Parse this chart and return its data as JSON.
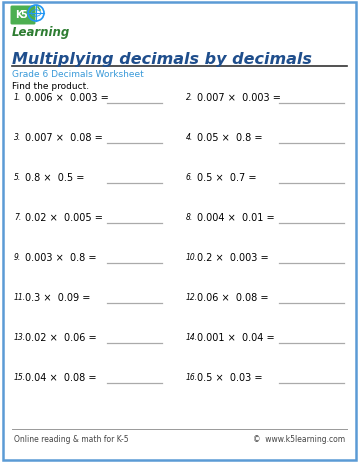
{
  "title": "Multiplying decimals by decimals",
  "subtitle": "Grade 6 Decimals Worksheet",
  "instruction": "Find the product.",
  "problems": [
    [
      "0.006 ×  0.003 =",
      "0.007 ×  0.003 ="
    ],
    [
      "0.007 ×  0.08 =",
      "0.05 ×  0.8 ="
    ],
    [
      "0.8 ×  0.5 =",
      "0.5 ×  0.7 ="
    ],
    [
      "0.02 ×  0.005 =",
      "0.004 ×  0.01 ="
    ],
    [
      "0.003 ×  0.8 =",
      "0.2 ×  0.003 ="
    ],
    [
      "0.3 ×  0.09 =",
      "0.06 ×  0.08 ="
    ],
    [
      "0.02 ×  0.06 =",
      "0.001 ×  0.04 ="
    ],
    [
      "0.04 ×  0.08 =",
      "0.5 ×  0.03 ="
    ]
  ],
  "problem_numbers": [
    [
      "1.",
      "2."
    ],
    [
      "3.",
      "4."
    ],
    [
      "5.",
      "6."
    ],
    [
      "7.",
      "8."
    ],
    [
      "9.",
      "10."
    ],
    [
      "11.",
      "12."
    ],
    [
      "13.",
      "14."
    ],
    [
      "15.",
      "16."
    ]
  ],
  "footer_left": "Online reading & math for K-5",
  "footer_right": "©  www.k5learning.com",
  "bg_color": "#ffffff",
  "border_color": "#5b9bd5",
  "title_color": "#1f4e8c",
  "subtitle_color": "#3a9ad9",
  "text_color": "#000000",
  "line_color": "#aaaaaa",
  "footer_color": "#444444",
  "title_fontsize": 11.5,
  "subtitle_fontsize": 6.5,
  "instruction_fontsize": 6.5,
  "problem_fontsize": 7.0,
  "number_fontsize": 5.5,
  "footer_fontsize": 5.5
}
